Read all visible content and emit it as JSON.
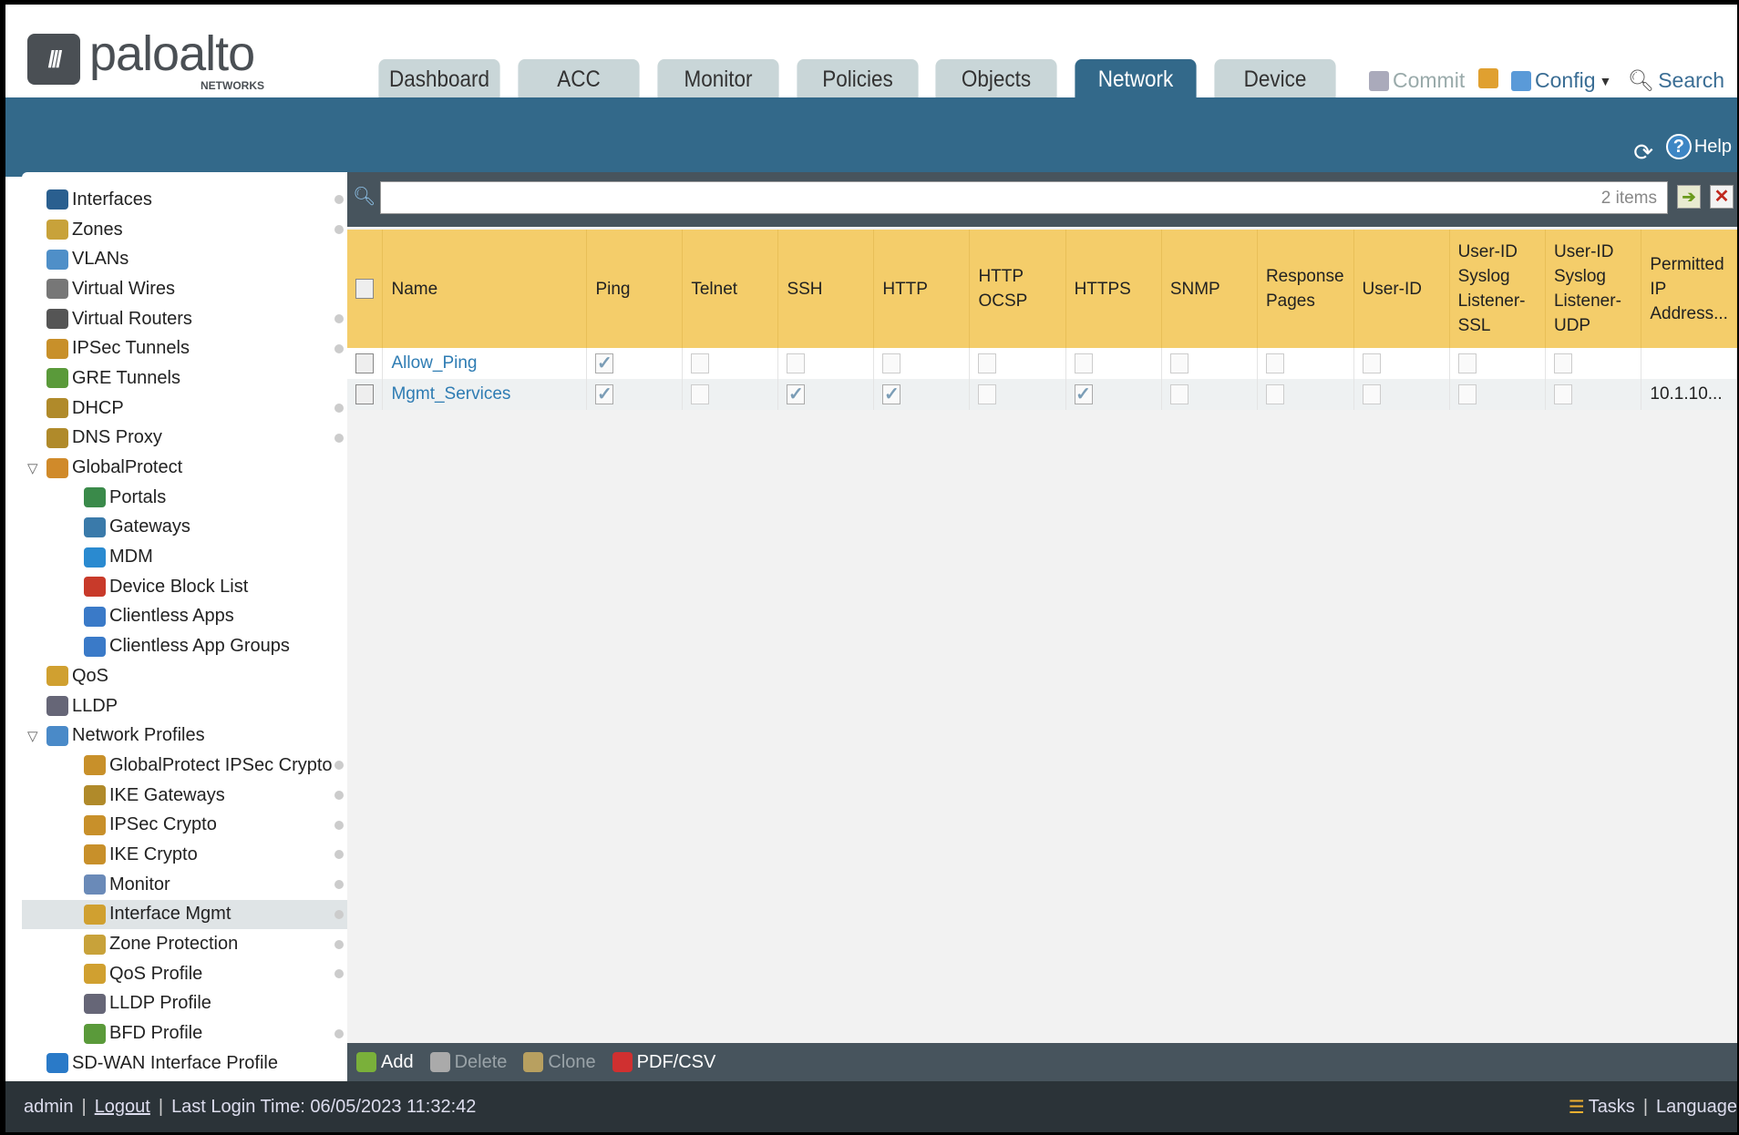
{
  "logo": {
    "brand": "paloalto",
    "sub": "NETWORKS"
  },
  "tabs": [
    "Dashboard",
    "ACC",
    "Monitor",
    "Policies",
    "Objects",
    "Network",
    "Device"
  ],
  "active_tab": "Network",
  "header_actions": {
    "commit": "Commit",
    "config": "Config",
    "search": "Search",
    "help": "Help"
  },
  "sidebar": [
    {
      "label": "Interfaces",
      "level": 0,
      "dot": true,
      "color": "#2a5f8f"
    },
    {
      "label": "Zones",
      "level": 0,
      "dot": true,
      "color": "#c8a23a"
    },
    {
      "label": "VLANs",
      "level": 0,
      "dot": false,
      "color": "#4f8fc8"
    },
    {
      "label": "Virtual Wires",
      "level": 0,
      "dot": false,
      "color": "#777"
    },
    {
      "label": "Virtual Routers",
      "level": 0,
      "dot": true,
      "color": "#555"
    },
    {
      "label": "IPSec Tunnels",
      "level": 0,
      "dot": true,
      "color": "#c8902a"
    },
    {
      "label": "GRE Tunnels",
      "level": 0,
      "dot": false,
      "color": "#5a9a3a"
    },
    {
      "label": "DHCP",
      "level": 0,
      "dot": true,
      "color": "#b08a2a"
    },
    {
      "label": "DNS Proxy",
      "level": 0,
      "dot": true,
      "color": "#b08a2a"
    },
    {
      "label": "GlobalProtect",
      "level": 0,
      "dot": false,
      "expanded": true,
      "color": "#d08a2a"
    },
    {
      "label": "Portals",
      "level": 1,
      "dot": false,
      "color": "#3a8a4a"
    },
    {
      "label": "Gateways",
      "level": 1,
      "dot": false,
      "color": "#3a7aaa"
    },
    {
      "label": "MDM",
      "level": 1,
      "dot": false,
      "color": "#2a8ad0"
    },
    {
      "label": "Device Block List",
      "level": 1,
      "dot": false,
      "color": "#c83a2a"
    },
    {
      "label": "Clientless Apps",
      "level": 1,
      "dot": false,
      "color": "#3a7ac8"
    },
    {
      "label": "Clientless App Groups",
      "level": 1,
      "dot": false,
      "color": "#3a7ac8"
    },
    {
      "label": "QoS",
      "level": 0,
      "dot": false,
      "color": "#d0a030"
    },
    {
      "label": "LLDP",
      "level": 0,
      "dot": false,
      "color": "#667"
    },
    {
      "label": "Network Profiles",
      "level": 0,
      "dot": false,
      "expanded": true,
      "color": "#4a8ac8"
    },
    {
      "label": "GlobalProtect IPSec Crypto",
      "level": 1,
      "dot": true,
      "color": "#c8902a"
    },
    {
      "label": "IKE Gateways",
      "level": 1,
      "dot": true,
      "color": "#b08a2a"
    },
    {
      "label": "IPSec Crypto",
      "level": 1,
      "dot": true,
      "color": "#c8902a"
    },
    {
      "label": "IKE Crypto",
      "level": 1,
      "dot": true,
      "color": "#c8902a"
    },
    {
      "label": "Monitor",
      "level": 1,
      "dot": true,
      "color": "#6a8ab8"
    },
    {
      "label": "Interface Mgmt",
      "level": 1,
      "dot": true,
      "selected": true,
      "color": "#d0a030"
    },
    {
      "label": "Zone Protection",
      "level": 1,
      "dot": true,
      "color": "#c8a23a"
    },
    {
      "label": "QoS Profile",
      "level": 1,
      "dot": true,
      "color": "#d0a030"
    },
    {
      "label": "LLDP Profile",
      "level": 1,
      "dot": false,
      "color": "#667"
    },
    {
      "label": "BFD Profile",
      "level": 1,
      "dot": true,
      "color": "#5a9a3a"
    },
    {
      "label": "SD-WAN Interface Profile",
      "level": 0,
      "dot": false,
      "color": "#2a7ac8"
    }
  ],
  "search": {
    "value": "",
    "count": "2 items"
  },
  "table": {
    "columns": [
      "Name",
      "Ping",
      "Telnet",
      "SSH",
      "HTTP",
      "HTTP OCSP",
      "HTTPS",
      "SNMP",
      "Response Pages",
      "User-ID",
      "User-ID Syslog Listener-SSL",
      "User-ID Syslog Listener-UDP",
      "Permitted IP Address..."
    ],
    "rows": [
      {
        "name": "Allow_Ping",
        "flags": [
          true,
          false,
          false,
          false,
          false,
          false,
          false,
          false,
          false,
          false,
          false
        ],
        "permitted": ""
      },
      {
        "name": "Mgmt_Services",
        "flags": [
          true,
          false,
          true,
          true,
          false,
          true,
          false,
          false,
          false,
          false,
          false
        ],
        "permitted": "10.1.10..."
      }
    ]
  },
  "toolbar": {
    "add": "Add",
    "delete": "Delete",
    "clone": "Clone",
    "pdf": "PDF/CSV"
  },
  "footer": {
    "user": "admin",
    "logout": "Logout",
    "last_login": "Last Login Time: 06/05/2023 11:32:42",
    "tasks": "Tasks",
    "language": "Language"
  }
}
